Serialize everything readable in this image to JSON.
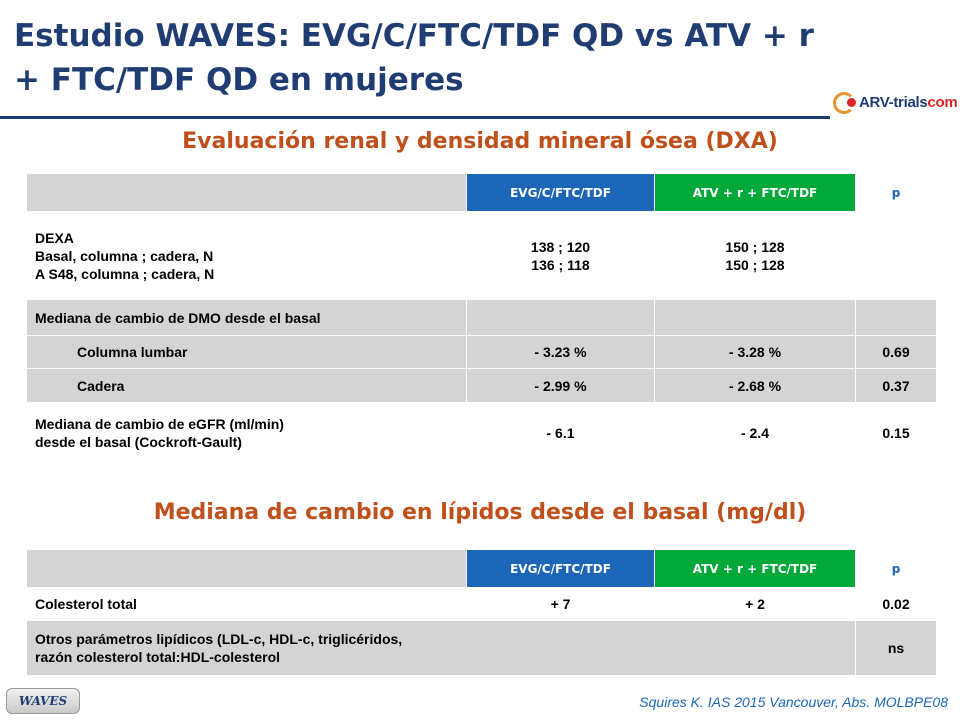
{
  "title": {
    "line1": "Estudio WAVES: EVG/C/FTC/TDF QD vs ATV + r",
    "line2": "+ FTC/TDF QD en mujeres"
  },
  "logo": {
    "part1": "ARV-trials",
    "part2": "com"
  },
  "renal_section": {
    "title": "Evaluación renal y densidad mineral ósea (DXA)",
    "headers": {
      "col1": "EVG/C/FTC/TDF",
      "col2": "ATV + r + FTC/TDF",
      "col3": "p"
    },
    "dexa": {
      "label1": "DEXA",
      "label2": "Basal, columna ; cadera, N",
      "label3": "A S48, columna ; cadera, N",
      "evg1": "138 ; 120",
      "evg2": "136 ; 118",
      "atv1": "150 ; 128",
      "atv2": "150 ; 128"
    },
    "dmo_label": "Mediana de cambio de DMO desde el basal",
    "rows": [
      {
        "label": "Columna lumbar",
        "evg": "- 3.23 %",
        "atv": "- 3.28 %",
        "p": "0.69"
      },
      {
        "label": "Cadera",
        "evg": "- 2.99 %",
        "atv": "- 2.68 %",
        "p": "0.37"
      }
    ],
    "egfr": {
      "label1": "Mediana de cambio de eGFR (ml/min)",
      "label2": "desde el basal (Cockroft-Gault)",
      "evg": "- 6.1",
      "atv": "- 2.4",
      "p": "0.15"
    }
  },
  "lipid_section": {
    "title": "Mediana de cambio en lípidos desde el basal (mg/dl)",
    "headers": {
      "col1": "EVG/C/FTC/TDF",
      "col2": "ATV + r + FTC/TDF",
      "col3": "p"
    },
    "cholesterol": {
      "label": "Colesterol total",
      "evg": "+ 7",
      "atv": "+ 2",
      "p": "0.02"
    },
    "other": {
      "label1": "Otros parámetros lipídicos (LDL-c, HDL-c, triglicéridos,",
      "label2": "razón colesterol total:HDL-colesterol",
      "p": "ns"
    }
  },
  "badge": "WAVES",
  "citation": "Squires K. IAS 2015 Vancouver, Abs. MOLBPE08"
}
